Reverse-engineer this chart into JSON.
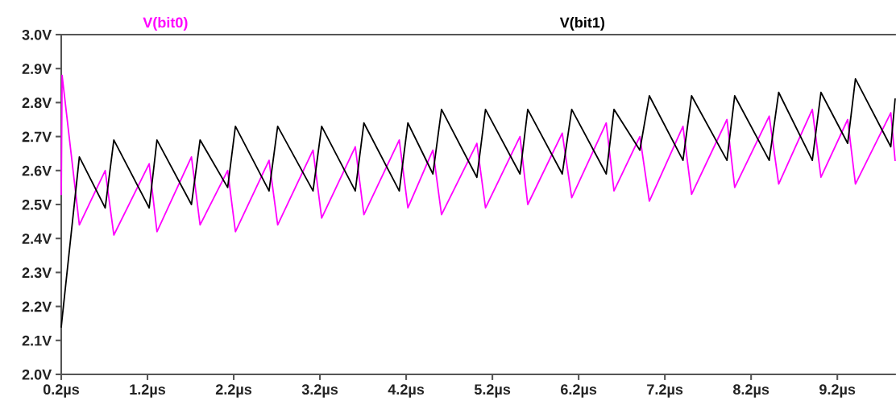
{
  "chart_data": {
    "type": "line",
    "xlim": [
      0.2,
      9.87
    ],
    "ylim": [
      2.0,
      3.0
    ],
    "xticks": [
      {
        "value": 0.2,
        "label": "0.2µs"
      },
      {
        "value": 1.2,
        "label": "1.2µs"
      },
      {
        "value": 2.2,
        "label": "2.2µs"
      },
      {
        "value": 3.2,
        "label": "3.2µs"
      },
      {
        "value": 4.2,
        "label": "4.2µs"
      },
      {
        "value": 5.2,
        "label": "5.2µs"
      },
      {
        "value": 6.2,
        "label": "6.2µs"
      },
      {
        "value": 7.2,
        "label": "7.2µs"
      },
      {
        "value": 8.2,
        "label": "8.2µs"
      },
      {
        "value": 9.2,
        "label": "9.2µs"
      }
    ],
    "yticks": [
      {
        "value": 2.0,
        "label": "2.0V"
      },
      {
        "value": 2.1,
        "label": "2.1V"
      },
      {
        "value": 2.2,
        "label": "2.2V"
      },
      {
        "value": 2.3,
        "label": "2.3V"
      },
      {
        "value": 2.4,
        "label": "2.4V"
      },
      {
        "value": 2.5,
        "label": "2.5V"
      },
      {
        "value": 2.6,
        "label": "2.6V"
      },
      {
        "value": 2.7,
        "label": "2.7V"
      },
      {
        "value": 2.8,
        "label": "2.8V"
      },
      {
        "value": 2.9,
        "label": "2.9V"
      },
      {
        "value": 3.0,
        "label": "3.0V"
      }
    ],
    "grid": false,
    "marker": "none",
    "line_style": "solid",
    "series": [
      {
        "name": "V(bit0)",
        "color": "#ff00ff",
        "x": [
          0.2,
          0.21,
          0.41,
          0.71,
          0.81,
          1.22,
          1.31,
          1.71,
          1.81,
          2.13,
          2.22,
          2.61,
          2.71,
          3.12,
          3.22,
          3.61,
          3.71,
          4.12,
          4.22,
          4.51,
          4.61,
          5.02,
          5.12,
          5.52,
          5.61,
          6.01,
          6.12,
          6.52,
          6.61,
          6.91,
          7.02,
          7.41,
          7.51,
          7.92,
          8.01,
          8.41,
          8.52,
          8.91,
          9.01,
          9.32,
          9.41,
          9.82,
          9.87
        ],
        "values": [
          2.53,
          2.88,
          2.44,
          2.6,
          2.41,
          2.62,
          2.42,
          2.64,
          2.44,
          2.6,
          2.42,
          2.63,
          2.44,
          2.66,
          2.46,
          2.67,
          2.47,
          2.69,
          2.49,
          2.66,
          2.47,
          2.68,
          2.49,
          2.7,
          2.5,
          2.71,
          2.52,
          2.74,
          2.54,
          2.7,
          2.51,
          2.73,
          2.53,
          2.75,
          2.55,
          2.76,
          2.56,
          2.78,
          2.58,
          2.75,
          2.56,
          2.77,
          2.63
        ]
      },
      {
        "name": "V(bit1)",
        "color": "#000000",
        "x": [
          0.2,
          0.41,
          0.71,
          0.81,
          1.22,
          1.31,
          1.71,
          1.81,
          2.13,
          2.22,
          2.61,
          2.71,
          3.12,
          3.22,
          3.61,
          3.71,
          4.12,
          4.22,
          4.51,
          4.61,
          5.02,
          5.12,
          5.52,
          5.61,
          6.01,
          6.12,
          6.52,
          6.61,
          6.91,
          7.02,
          7.41,
          7.51,
          7.92,
          8.01,
          8.41,
          8.52,
          8.91,
          9.01,
          9.32,
          9.41,
          9.82,
          9.87
        ],
        "values": [
          2.14,
          2.64,
          2.49,
          2.69,
          2.49,
          2.69,
          2.5,
          2.69,
          2.55,
          2.73,
          2.54,
          2.73,
          2.54,
          2.73,
          2.54,
          2.74,
          2.54,
          2.74,
          2.59,
          2.78,
          2.58,
          2.78,
          2.59,
          2.78,
          2.59,
          2.78,
          2.59,
          2.78,
          2.66,
          2.82,
          2.63,
          2.82,
          2.63,
          2.82,
          2.63,
          2.83,
          2.63,
          2.83,
          2.68,
          2.87,
          2.67,
          2.81
        ]
      }
    ]
  }
}
